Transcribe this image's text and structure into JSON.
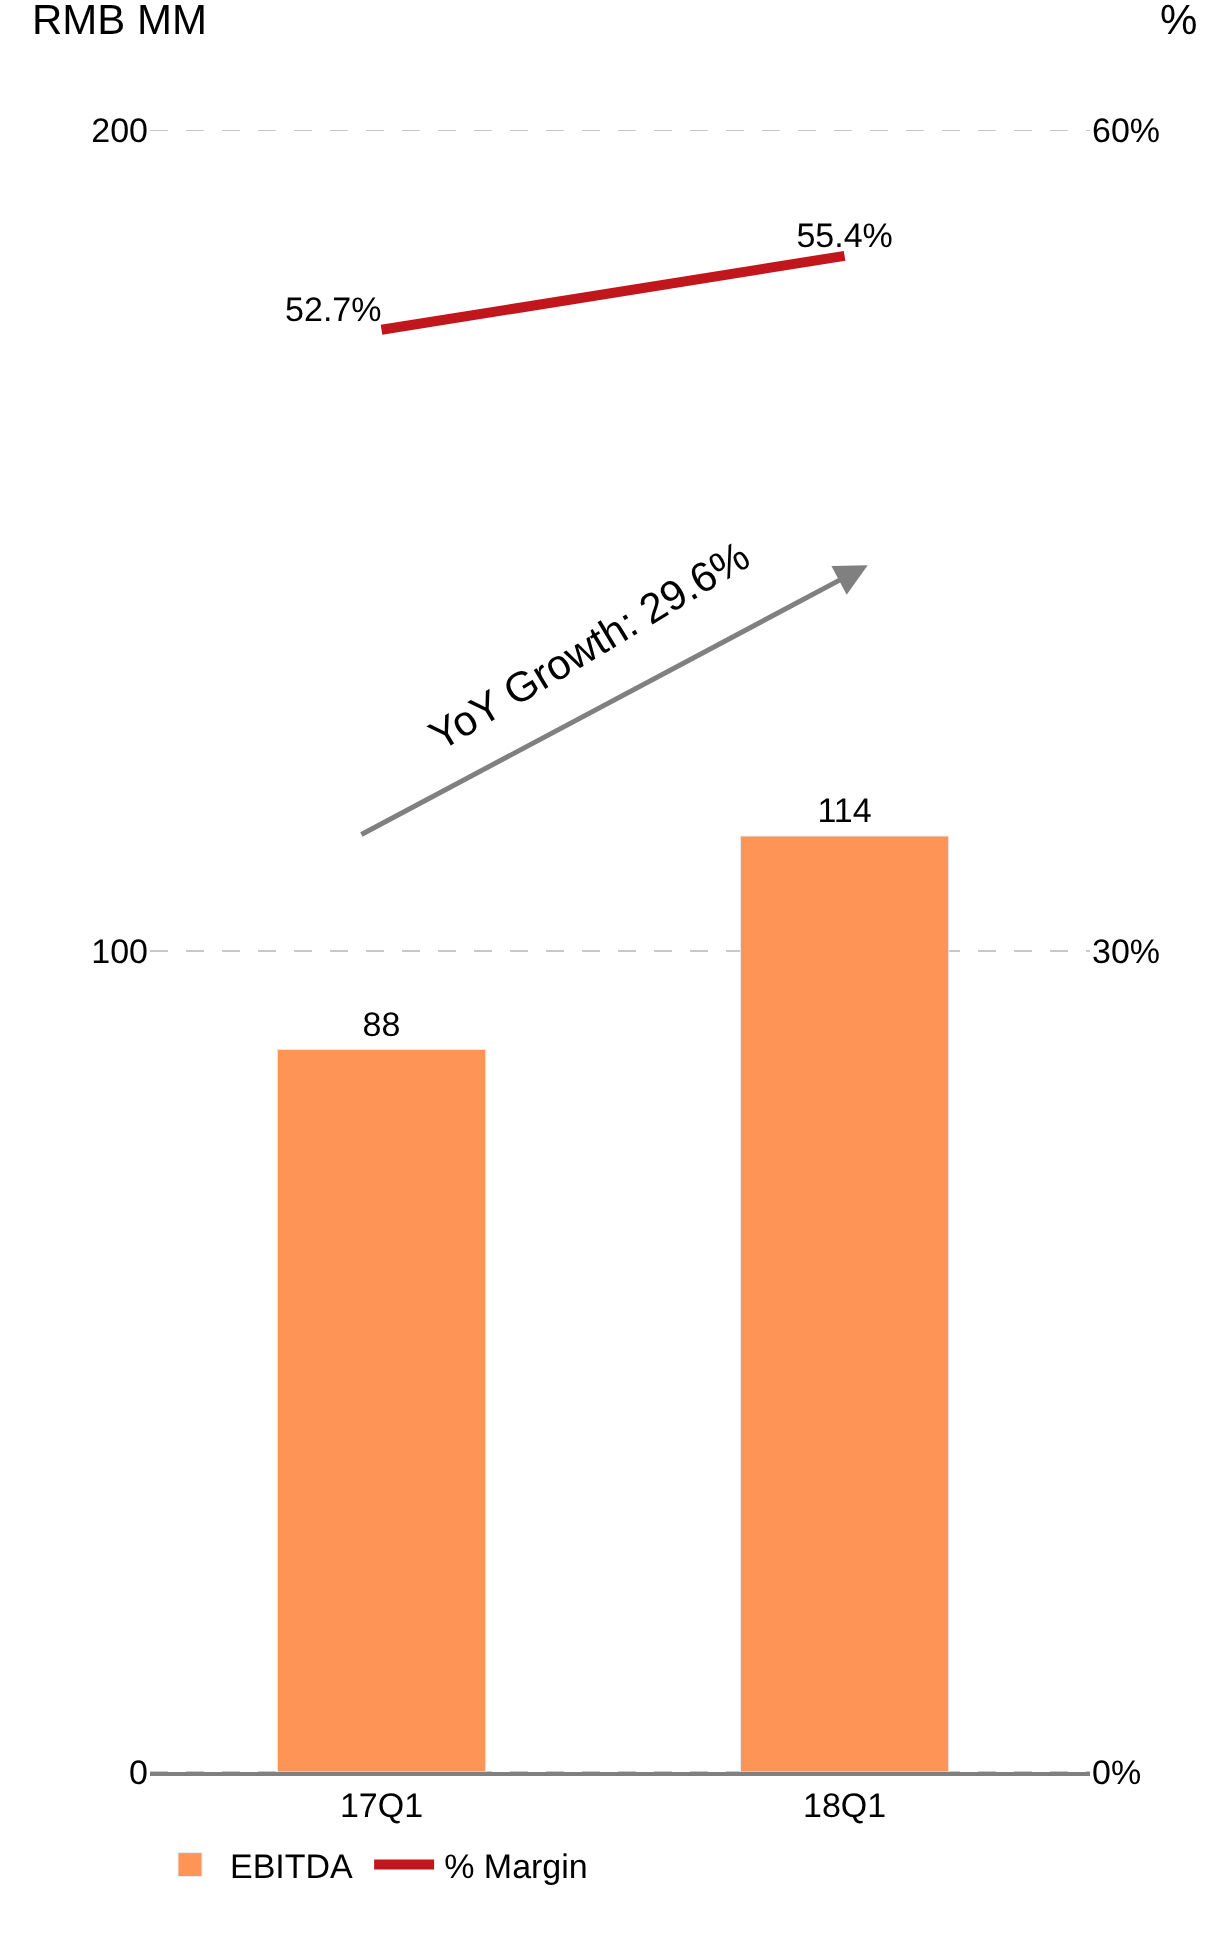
{
  "chart_data": {
    "type": "bar",
    "ylabel": "RMB MM",
    "y2label": "%",
    "categories": [
      "17Q1",
      "18Q1"
    ],
    "series": [
      {
        "name": "EBITDA",
        "color": "#ff9457",
        "values": [
          88,
          114
        ]
      },
      {
        "name": "% Margin",
        "type": "line",
        "axis": "y2",
        "color": "#c0161c",
        "values": [
          52.7,
          55.4
        ],
        "value_labels": [
          "52.7%",
          "55.4%"
        ]
      }
    ],
    "data_labels": true,
    "ylim": [
      0,
      200
    ],
    "yticks": [
      0,
      100,
      200
    ],
    "y2lim": [
      0,
      60
    ],
    "y2ticks": [
      {
        "value": 0,
        "label": "0%"
      },
      {
        "value": 30,
        "label": "30%"
      },
      {
        "value": 60,
        "label": "60%"
      }
    ],
    "grid": "y",
    "legend": "bottom",
    "marker": "none",
    "line_style": "solid",
    "annotations": [
      "YoY Growth: 29.6%"
    ]
  }
}
